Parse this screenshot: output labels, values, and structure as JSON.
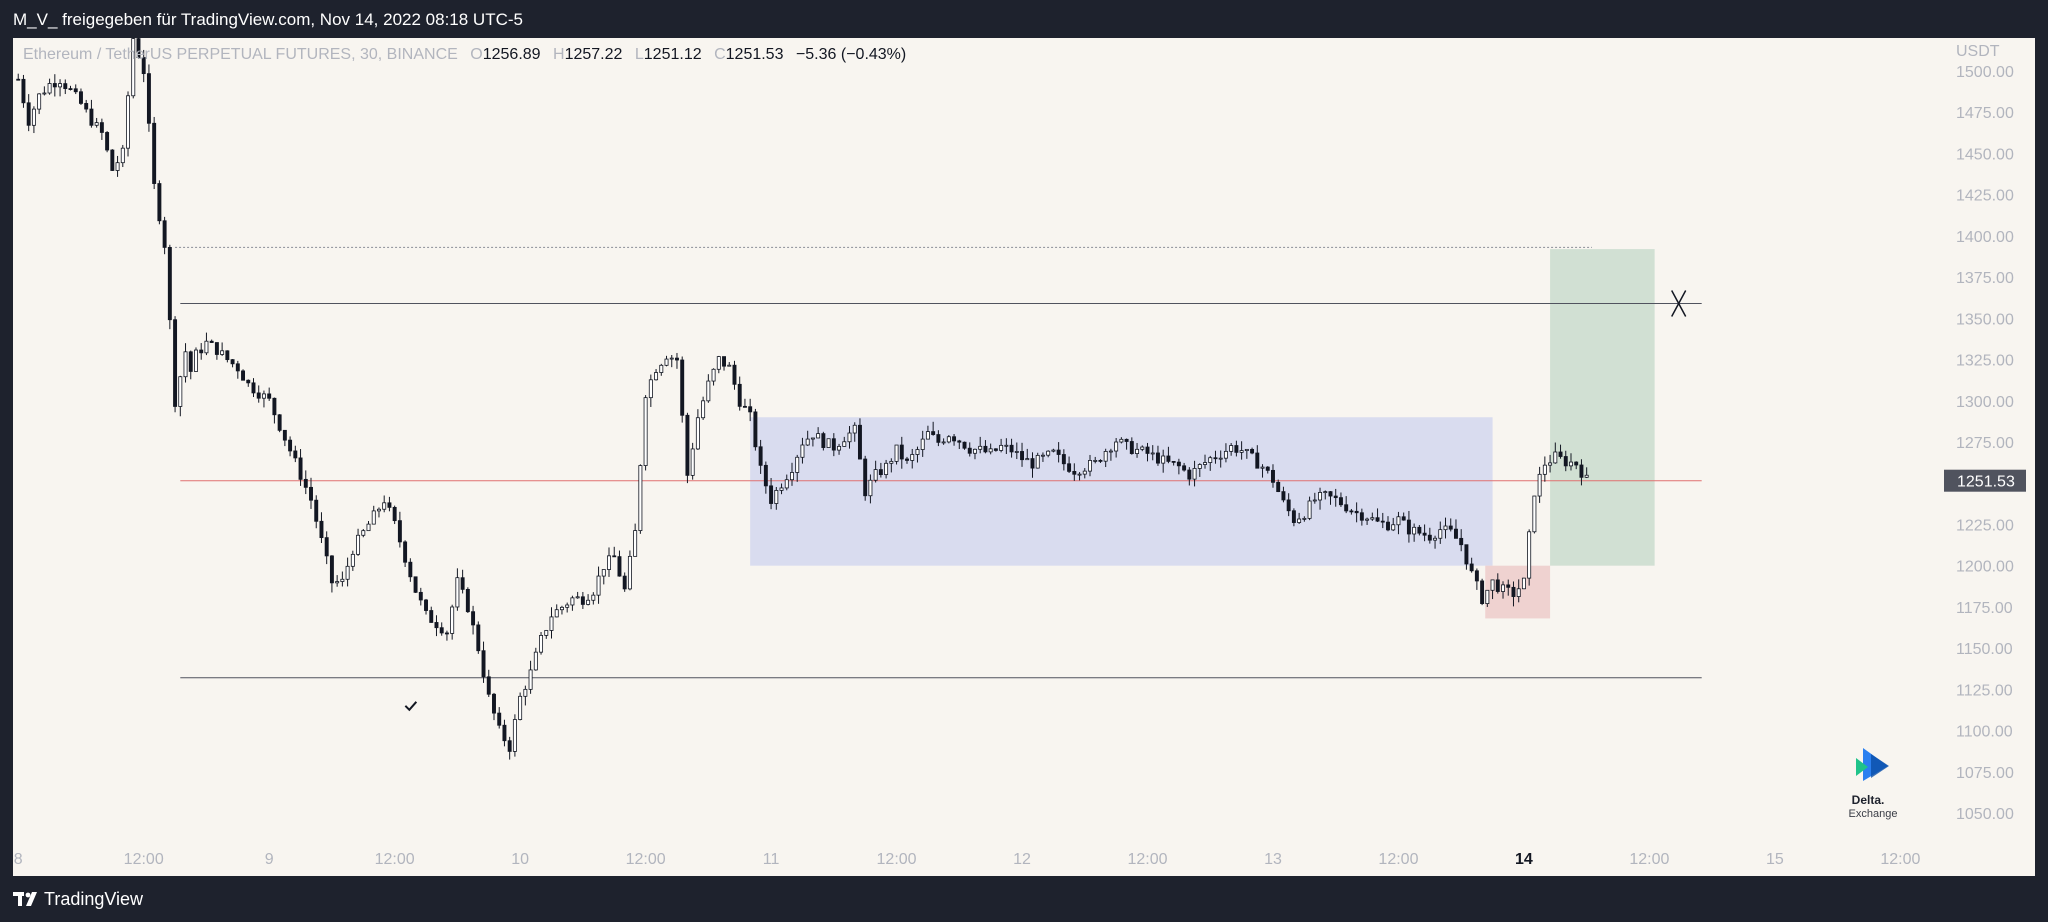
{
  "header": {
    "share_text": "M_V_ freigegeben für TradingView.com, Nov 14, 2022 08:18 UTC-5"
  },
  "legend": {
    "symbol": "Ethereum / TetherUS PERPETUAL FUTURES, 30, BINANCE",
    "open_label": "O",
    "open": "1256.89",
    "high_label": "H",
    "high": "1257.22",
    "low_label": "L",
    "low": "1251.12",
    "close_label": "C",
    "close": "1251.53",
    "change": "−5.36 (−0.43%)"
  },
  "footer": {
    "brand": "TradingView"
  },
  "watermark": {
    "line1": "Delta.",
    "line2": "Exchange"
  },
  "colors": {
    "background": "#f8f5f0",
    "candle": "#131722",
    "range_box": "#c5cbee",
    "profit_zone": "#c4d8c9",
    "loss_zone": "#ecc6c6",
    "price_line": "#e07070",
    "axis_text": "#b2b5be",
    "price_tag": "#50535e"
  },
  "chart_data": {
    "type": "candlestick",
    "title": "Ethereum / TetherUS PERPETUAL FUTURES, 30, BINANCE",
    "currency_label": "USDT",
    "y_ticks": [
      "1500.00",
      "1475.00",
      "1450.00",
      "1425.00",
      "1400.00",
      "1375.00",
      "1350.00",
      "1325.00",
      "1300.00",
      "1275.00",
      "1250.00",
      "1225.00",
      "1200.00",
      "1175.00",
      "1150.00",
      "1125.00",
      "1100.00",
      "1075.00",
      "1050.00"
    ],
    "ylim": [
      1030,
      1520
    ],
    "x_ticks": [
      {
        "label": "8",
        "t": 0
      },
      {
        "label": "12:00",
        "t": 12
      },
      {
        "label": "9",
        "t": 24
      },
      {
        "label": "12:00",
        "t": 36
      },
      {
        "label": "10",
        "t": 48
      },
      {
        "label": "12:00",
        "t": 60
      },
      {
        "label": "11",
        "t": 72
      },
      {
        "label": "12:00",
        "t": 84
      },
      {
        "label": "12",
        "t": 96
      },
      {
        "label": "12:00",
        "t": 108
      },
      {
        "label": "13",
        "t": 120
      },
      {
        "label": "12:00",
        "t": 132
      },
      {
        "label": "14",
        "t": 144
      },
      {
        "label": "12:00",
        "t": 156
      },
      {
        "label": "15",
        "t": 168
      },
      {
        "label": "12:00",
        "t": 180
      }
    ],
    "xlim": [
      -0.5,
      183.6
    ],
    "x_unit": "hours since Nov 8 00:00",
    "last_price": "1251.53",
    "price_path": [
      [
        0,
        1495
      ],
      [
        1,
        1470
      ],
      [
        2,
        1485
      ],
      [
        3,
        1492
      ],
      [
        4,
        1495
      ],
      [
        5,
        1488
      ],
      [
        6,
        1480
      ],
      [
        7,
        1470
      ],
      [
        8,
        1462
      ],
      [
        9,
        1440
      ],
      [
        10,
        1450
      ],
      [
        11,
        1520
      ],
      [
        12,
        1500
      ],
      [
        13,
        1430
      ],
      [
        14,
        1395
      ],
      [
        15,
        1300
      ],
      [
        16,
        1330
      ],
      [
        16.5,
        1318
      ],
      [
        17,
        1328
      ],
      [
        18,
        1335
      ],
      [
        19,
        1331
      ],
      [
        20,
        1325
      ],
      [
        21,
        1320
      ],
      [
        22,
        1310
      ],
      [
        23,
        1305
      ],
      [
        24,
        1300
      ],
      [
        25,
        1285
      ],
      [
        26,
        1270
      ],
      [
        27,
        1255
      ],
      [
        28,
        1240
      ],
      [
        29,
        1215
      ],
      [
        30,
        1190
      ],
      [
        31,
        1190
      ],
      [
        32,
        1210
      ],
      [
        33,
        1220
      ],
      [
        34,
        1230
      ],
      [
        35,
        1240
      ],
      [
        36,
        1225
      ],
      [
        37,
        1205
      ],
      [
        38,
        1185
      ],
      [
        39,
        1170
      ],
      [
        40,
        1165
      ],
      [
        41,
        1160
      ],
      [
        42,
        1190
      ],
      [
        43,
        1175
      ],
      [
        44,
        1150
      ],
      [
        45,
        1120
      ],
      [
        46,
        1100
      ],
      [
        47,
        1090
      ],
      [
        48,
        1120
      ],
      [
        49,
        1135
      ],
      [
        50,
        1155
      ],
      [
        51,
        1170
      ],
      [
        52,
        1175
      ],
      [
        53,
        1180
      ],
      [
        54,
        1180
      ],
      [
        55,
        1185
      ],
      [
        56,
        1200
      ],
      [
        57,
        1205
      ],
      [
        58,
        1185
      ],
      [
        59,
        1220
      ],
      [
        60,
        1305
      ],
      [
        61,
        1320
      ],
      [
        62,
        1328
      ],
      [
        63,
        1325
      ],
      [
        64,
        1255
      ],
      [
        65,
        1290
      ],
      [
        66,
        1310
      ],
      [
        67,
        1325
      ],
      [
        68,
        1320
      ],
      [
        69,
        1300
      ],
      [
        70,
        1290
      ],
      [
        71,
        1258
      ],
      [
        72,
        1240
      ],
      [
        73,
        1250
      ],
      [
        74,
        1260
      ],
      [
        75,
        1275
      ],
      [
        76,
        1280
      ],
      [
        77,
        1275
      ],
      [
        78,
        1272
      ],
      [
        79,
        1278
      ],
      [
        80,
        1282
      ],
      [
        81,
        1245
      ],
      [
        82,
        1255
      ],
      [
        83,
        1260
      ],
      [
        84,
        1270
      ],
      [
        85,
        1262
      ],
      [
        86,
        1270
      ],
      [
        87,
        1280
      ],
      [
        88,
        1275
      ],
      [
        89,
        1280
      ],
      [
        90,
        1276
      ],
      [
        91,
        1271
      ],
      [
        92,
        1270
      ],
      [
        93,
        1268
      ],
      [
        94,
        1272
      ],
      [
        95,
        1270
      ],
      [
        96,
        1265
      ],
      [
        97,
        1262
      ],
      [
        98,
        1265
      ],
      [
        99,
        1268
      ],
      [
        100,
        1262
      ],
      [
        101,
        1258
      ],
      [
        102,
        1260
      ],
      [
        103,
        1262
      ],
      [
        104,
        1270
      ],
      [
        105,
        1276
      ],
      [
        106,
        1272
      ],
      [
        107,
        1270
      ],
      [
        108,
        1268
      ],
      [
        109,
        1265
      ],
      [
        110,
        1262
      ],
      [
        111,
        1260
      ],
      [
        112,
        1255
      ],
      [
        113,
        1260
      ],
      [
        114,
        1265
      ],
      [
        115,
        1268
      ],
      [
        116,
        1272
      ],
      [
        117,
        1270
      ],
      [
        118,
        1265
      ],
      [
        119,
        1260
      ],
      [
        120,
        1252
      ],
      [
        121,
        1238
      ],
      [
        122,
        1228
      ],
      [
        123,
        1232
      ],
      [
        124,
        1240
      ],
      [
        125,
        1242
      ],
      [
        126,
        1240
      ],
      [
        127,
        1236
      ],
      [
        128,
        1232
      ],
      [
        129,
        1230
      ],
      [
        130,
        1226
      ],
      [
        131,
        1225
      ],
      [
        132,
        1228
      ],
      [
        133,
        1222
      ],
      [
        134,
        1220
      ],
      [
        135,
        1218
      ],
      [
        136,
        1222
      ],
      [
        137,
        1220
      ],
      [
        138,
        1213
      ],
      [
        139,
        1195
      ],
      [
        140,
        1180
      ],
      [
        141,
        1190
      ],
      [
        142,
        1185
      ],
      [
        143,
        1183
      ],
      [
        144,
        1190
      ],
      [
        145,
        1245
      ],
      [
        146,
        1262
      ],
      [
        147,
        1266
      ],
      [
        148,
        1263
      ],
      [
        149,
        1262
      ],
      [
        150,
        1252
      ]
    ],
    "annotations": {
      "range_box": {
        "t0": 70,
        "t1": 141,
        "top": 1290,
        "bottom": 1200
      },
      "profit_zone": {
        "t0": 146.5,
        "t1": 156.5,
        "top": 1392,
        "bottom": 1200
      },
      "loss_zone": {
        "t0": 140.3,
        "t1": 146.5,
        "top": 1200,
        "bottom": 1168
      },
      "dotted_line": {
        "t0": 15,
        "t1": 150.5,
        "price": 1393
      },
      "upper_line": {
        "t0": 15.5,
        "t1": 161,
        "price": 1359
      },
      "lower_line": {
        "t0": 15.5,
        "t1": 161,
        "price": 1132
      },
      "mid_line": {
        "t0": 15.5,
        "t1": 161,
        "price": 1251.53
      },
      "x_mark": {
        "t": 158.8,
        "price": 1359
      },
      "check_mark": {
        "t": 37.5,
        "price": 1115
      }
    }
  }
}
